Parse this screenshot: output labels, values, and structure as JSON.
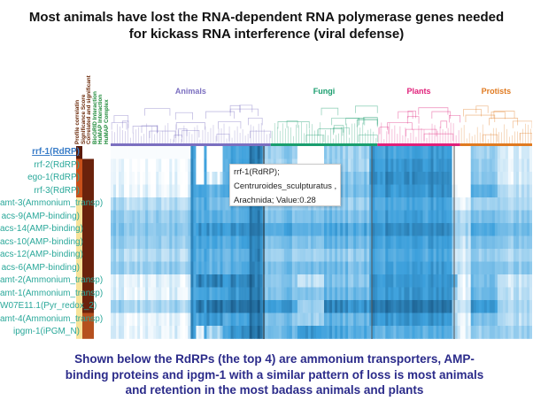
{
  "slide": {
    "title_line1": "Most animals have lost the RNA-dependent RNA polymerase genes needed",
    "title_line2": "for kickass RNA interference (viral defense)",
    "footer_line1": "Shown below the RdRPs (the top 4) are ammonium transporters, AMP-",
    "footer_line2": "binding proteins and ipgm-1 with a similar pattern of loss is most animals",
    "footer_line3": "and retention in the most badass animals and plants"
  },
  "annotation_columns": [
    {
      "label": "Profile correlatin",
      "color": "#6b2a0a"
    },
    {
      "label": "Significance Score",
      "color": "#6b2a0a"
    },
    {
      "label": "Correlated and significant",
      "color": "#6b2a0a"
    },
    {
      "label": "BioGRID Interaction",
      "color": "#1f8a3a"
    },
    {
      "label": "HuMAP Interaction",
      "color": "#1f8a3a"
    },
    {
      "label": "HuMAP Complex",
      "color": "#1f8a3a"
    }
  ],
  "categories": [
    {
      "label": "Animals",
      "color": "#7b6fc0",
      "columns": 60
    },
    {
      "label": "Fungi",
      "color": "#1a9e6e",
      "columns": 40
    },
    {
      "label": "Plants",
      "color": "#e0207a",
      "columns": 31
    },
    {
      "label": "Protists",
      "color": "#e07a20",
      "columns": 27
    }
  ],
  "rows": [
    "rrf-1(RdRP)",
    "rrf-2(RdRP)",
    "ego-1(RdRP)",
    "rrf-3(RdRP)",
    "amt-3(Ammonium_transp)",
    "acs-9(AMP-binding)",
    "acs-14(AMP-binding)",
    "acs-10(AMP-binding)",
    "acs-12(AMP-binding)",
    "acs-6(AMP-binding)",
    "amt-2(Ammonium_transp)",
    "amt-1(Ammonium_transp)",
    "W07E11.1(Pyr_redox_2)",
    "amt-4(Ammonium_transp)",
    "ipgm-1(iPGM_N)"
  ],
  "selected_row": 0,
  "profile_correlation": [
    1,
    0.6,
    0.6,
    0.6,
    0.1,
    0.1,
    0.1,
    0.1,
    0.1,
    0.1,
    0.1,
    0.1,
    0.1,
    0.1,
    0.1
  ],
  "significance": [
    0,
    1,
    1,
    1,
    1,
    1,
    1,
    1,
    1,
    1,
    1,
    1,
    1,
    0.6,
    0.6
  ],
  "heatmap_segments": [
    {
      "n": 30,
      "v": [
        0.02,
        0.03,
        0.05,
        0.08,
        0.25,
        0.35,
        0.4,
        0.35,
        0.25,
        0.35,
        0.1,
        0.1,
        0.3,
        0.08,
        0.1
      ]
    },
    {
      "n": 2,
      "v": [
        0.7,
        0.7,
        0.7,
        0.7,
        0.7,
        0.7,
        0.7,
        0.7,
        0.7,
        0.7,
        0.7,
        0.7,
        0.7,
        0.7,
        0.7
      ]
    },
    {
      "n": 3,
      "v": [
        0,
        0,
        0,
        0.6,
        0.5,
        0.55,
        0.7,
        0.6,
        0.5,
        0.55,
        0.8,
        0.6,
        0.85,
        0.6,
        0.1
      ]
    },
    {
      "n": 1,
      "v": [
        0.7,
        0.7,
        0.7,
        0.7,
        0.7,
        0.7,
        0.7,
        0.7,
        0.7,
        0.7,
        0.7,
        0.7,
        0.7,
        0.7,
        0.7
      ]
    },
    {
      "n": 6,
      "v": [
        0,
        0,
        0.1,
        0.5,
        0.45,
        0.55,
        0.7,
        0.6,
        0.5,
        0.55,
        0.8,
        0.6,
        0.85,
        0.7,
        0.3
      ]
    },
    {
      "n": 10,
      "v": [
        0.6,
        0.6,
        0.6,
        0.7,
        0.5,
        0.55,
        0.7,
        0.6,
        0.5,
        0.55,
        0.75,
        0.7,
        0.85,
        0.6,
        0.7
      ]
    },
    {
      "n": 5,
      "v": [
        0.85,
        0.85,
        0.85,
        0.85,
        0.8,
        0.8,
        0.85,
        0.8,
        0.8,
        0.8,
        0.85,
        0.85,
        0.9,
        0.85,
        0.9
      ]
    },
    {
      "n": 13,
      "v": [
        0.35,
        0.3,
        0.3,
        0.4,
        0.35,
        0.45,
        0.6,
        0.45,
        0.35,
        0.45,
        0.4,
        0.45,
        0.7,
        0.45,
        0.5
      ]
    },
    {
      "n": 10,
      "v": [
        0,
        0,
        0,
        0.1,
        0.3,
        0.4,
        0.55,
        0.4,
        0.3,
        0.45,
        0.2,
        0.4,
        0.3,
        0.3,
        0.7
      ]
    },
    {
      "n": 17,
      "v": [
        0.3,
        0.3,
        0.4,
        0.45,
        0.35,
        0.45,
        0.6,
        0.5,
        0.35,
        0.45,
        0.4,
        0.5,
        0.75,
        0.5,
        0.6
      ]
    },
    {
      "n": 31,
      "v": [
        0.65,
        0.7,
        0.75,
        0.7,
        0.6,
        0.65,
        0.75,
        0.65,
        0.6,
        0.65,
        0.7,
        0.7,
        0.85,
        0.7,
        0.55
      ]
    },
    {
      "n": 2,
      "v": [
        0,
        0,
        0,
        0.1,
        0.2,
        0.3,
        0.4,
        0.3,
        0.2,
        0.3,
        0.6,
        0.4,
        0.3,
        0.3,
        0.4
      ]
    },
    {
      "n": 5,
      "v": [
        0,
        0,
        0,
        0,
        0.1,
        0.25,
        0.3,
        0.2,
        0.15,
        0.2,
        0.1,
        0.1,
        0.2,
        0.1,
        0.1
      ]
    },
    {
      "n": 10,
      "v": [
        0.3,
        0.35,
        0.4,
        0.55,
        0.3,
        0.45,
        0.6,
        0.45,
        0.35,
        0.45,
        0.45,
        0.5,
        0.7,
        0.45,
        0.35
      ]
    },
    {
      "n": 13,
      "v": [
        0.1,
        0.1,
        0.1,
        0.2,
        0.25,
        0.35,
        0.45,
        0.35,
        0.25,
        0.35,
        0.15,
        0.2,
        0.25,
        0.2,
        0.3
      ]
    }
  ],
  "tooltip": {
    "line1": "rrf-1(RdRP);",
    "line2": "Centruroides_sculpturatus ,",
    "line3": "Arachnida; Value:0.28"
  }
}
